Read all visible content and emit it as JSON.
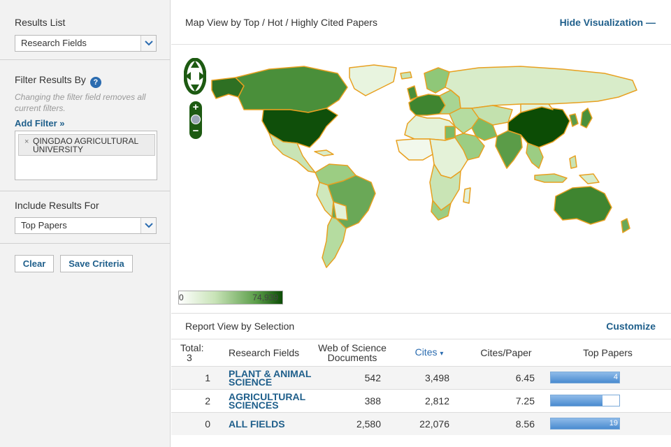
{
  "sidebar": {
    "results_list_label": "Results List",
    "results_list_value": "Research Fields",
    "filter_title": "Filter Results By",
    "filter_help": "?",
    "filter_hint": "Changing the filter field removes all current filters.",
    "add_filter": "Add Filter »",
    "active_filter": "QINGDAO AGRICULTURAL UNIVERSITY",
    "active_filter_remove": "×",
    "include_label": "Include Results For",
    "include_value": "Top Papers",
    "clear_button": "Clear",
    "save_button": "Save Criteria"
  },
  "map_panel": {
    "title": "Map View by Top / Hot / Highly Cited Papers",
    "hide_label": "Hide Visualization —",
    "legend_min": "0",
    "legend_max": "74,939",
    "zoom_in": "+",
    "zoom_out": "−"
  },
  "report": {
    "title": "Report View by Selection",
    "customize_label": "Customize",
    "headers": {
      "total_label": "Total:",
      "total_value": "3",
      "field": "Research Fields",
      "docs": "Web of Science Documents",
      "cites": "Cites",
      "cites_sort": "▾",
      "cites_per_paper": "Cites/Paper",
      "top_papers": "Top Papers"
    },
    "rows": [
      {
        "rank": "1",
        "field": "PLANT & ANIMAL SCIENCE",
        "docs": "542",
        "cites": "3,498",
        "cpp": "6.45",
        "top_papers": "4",
        "top_fraction": 1.0
      },
      {
        "rank": "2",
        "field": "AGRICULTURAL SCIENCES",
        "docs": "388",
        "cites": "2,812",
        "cpp": "7.25",
        "top_papers": "3",
        "top_fraction": 0.75
      },
      {
        "rank": "0",
        "field": "ALL FIELDS",
        "docs": "2,580",
        "cites": "22,076",
        "cpp": "8.56",
        "top_papers": "19",
        "top_fraction": 1.0
      }
    ]
  },
  "colors": {
    "link": "#1f5f8b",
    "map_border": "#e8a020",
    "map_low": "#e6f3da",
    "map_high": "#0c4c05",
    "bar": "#4a8bd0"
  }
}
